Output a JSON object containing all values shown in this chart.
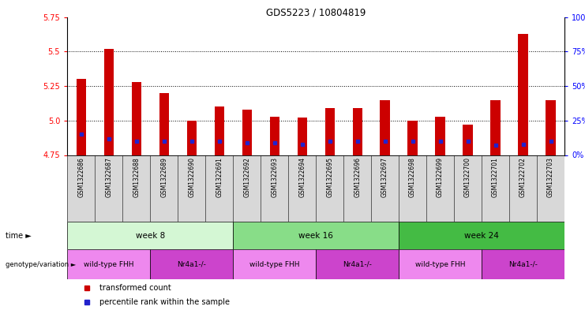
{
  "title": "GDS5223 / 10804819",
  "samples": [
    "GSM1322686",
    "GSM1322687",
    "GSM1322688",
    "GSM1322689",
    "GSM1322690",
    "GSM1322691",
    "GSM1322692",
    "GSM1322693",
    "GSM1322694",
    "GSM1322695",
    "GSM1322696",
    "GSM1322697",
    "GSM1322698",
    "GSM1322699",
    "GSM1322700",
    "GSM1322701",
    "GSM1322702",
    "GSM1322703"
  ],
  "transformed_count": [
    5.3,
    5.52,
    5.28,
    5.2,
    5.0,
    5.1,
    5.08,
    5.03,
    5.02,
    5.09,
    5.09,
    5.15,
    5.0,
    5.03,
    4.97,
    5.15,
    5.63,
    5.15
  ],
  "percentile_rank": [
    15,
    12,
    10,
    10,
    10,
    10,
    9,
    9,
    8,
    10,
    10,
    10,
    10,
    10,
    10,
    7,
    8,
    10
  ],
  "y_min": 4.75,
  "y_max": 5.75,
  "y_ticks_left": [
    4.75,
    5.0,
    5.25,
    5.5,
    5.75
  ],
  "y_ticks_right": [
    0,
    25,
    50,
    75,
    100
  ],
  "bar_color": "#cc0000",
  "marker_color": "#2222cc",
  "background_color": "#ffffff",
  "time_groups": [
    {
      "label": "week 8",
      "start": 0,
      "end": 6,
      "color": "#d4f7d4"
    },
    {
      "label": "week 16",
      "start": 6,
      "end": 12,
      "color": "#88dd88"
    },
    {
      "label": "week 24",
      "start": 12,
      "end": 18,
      "color": "#44bb44"
    }
  ],
  "genotype_groups": [
    {
      "label": "wild-type FHH",
      "start": 0,
      "end": 3,
      "color": "#ee88ee"
    },
    {
      "label": "Nr4a1-/-",
      "start": 3,
      "end": 6,
      "color": "#cc44cc"
    },
    {
      "label": "wild-type FHH",
      "start": 6,
      "end": 9,
      "color": "#ee88ee"
    },
    {
      "label": "Nr4a1-/-",
      "start": 9,
      "end": 12,
      "color": "#cc44cc"
    },
    {
      "label": "wild-type FHH",
      "start": 12,
      "end": 15,
      "color": "#ee88ee"
    },
    {
      "label": "Nr4a1-/-",
      "start": 15,
      "end": 18,
      "color": "#cc44cc"
    }
  ],
  "legend_items": [
    {
      "label": "transformed count",
      "color": "#cc0000"
    },
    {
      "label": "percentile rank within the sample",
      "color": "#2222cc"
    }
  ],
  "label_left": "time",
  "label_left2": "genotype/variation"
}
